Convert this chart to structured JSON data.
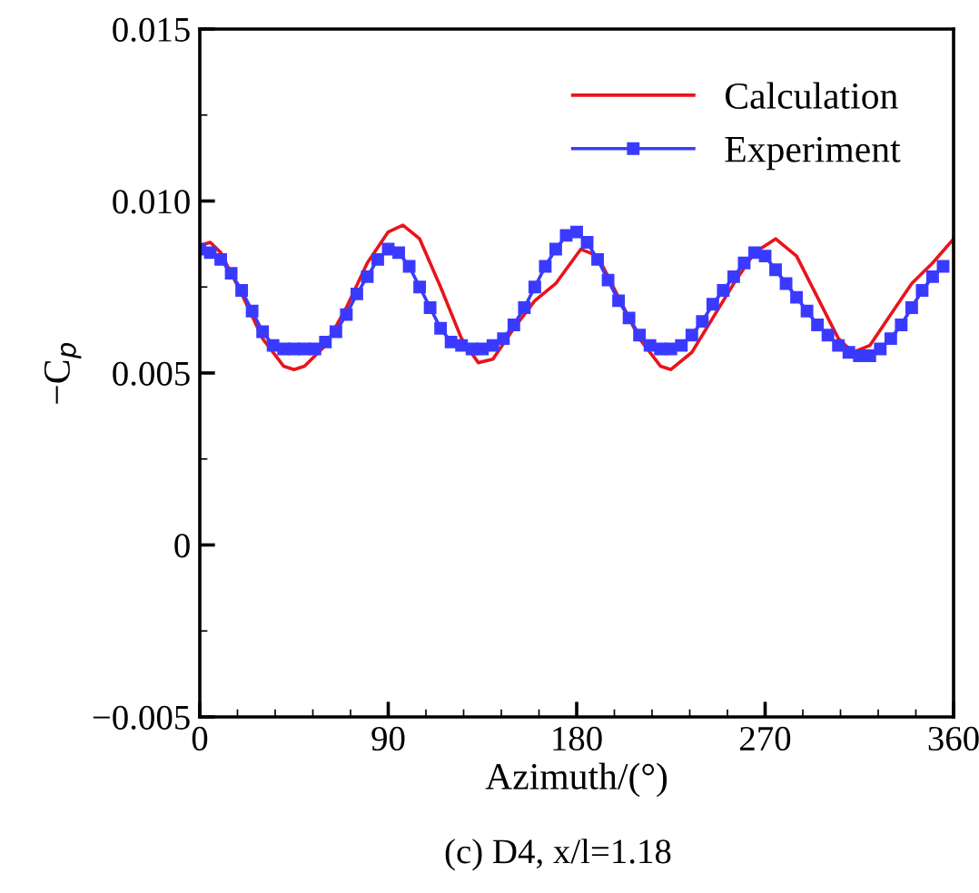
{
  "chart_data": {
    "type": "line",
    "xlabel": "Azimuth/(°)",
    "ylabel": "−C$_{p}$",
    "annotations": [
      "(c) D4, x/l=1.18"
    ],
    "xlim": [
      0,
      360
    ],
    "xticks": [
      0,
      {
        "value": 18,
        "label": null
      },
      {
        "value": 36,
        "label": null
      },
      {
        "value": 54,
        "label": null
      },
      {
        "value": 72,
        "label": null
      },
      90,
      {
        "value": 108,
        "label": null
      },
      {
        "value": 126,
        "label": null
      },
      {
        "value": 144,
        "label": null
      },
      {
        "value": 162,
        "label": null
      },
      180,
      {
        "value": 198,
        "label": null
      },
      {
        "value": 216,
        "label": null
      },
      {
        "value": 234,
        "label": null
      },
      {
        "value": 252,
        "label": null
      },
      270,
      {
        "value": 288,
        "label": null
      },
      {
        "value": 306,
        "label": null
      },
      {
        "value": 324,
        "label": null
      },
      {
        "value": 342,
        "label": null
      },
      360
    ],
    "ylim": [
      -0.005,
      0.015
    ],
    "yticks": [
      {
        "value": -0.005,
        "label": "−0.005"
      },
      {
        "value": -0.0025,
        "label": null
      },
      0,
      {
        "value": 0.0025,
        "label": null
      },
      0.005,
      {
        "value": 0.0075,
        "label": null
      },
      {
        "value": 0.01,
        "label": "0.010"
      },
      {
        "value": 0.0125,
        "label": null
      },
      0.015
    ],
    "grid": false,
    "legend": "top right",
    "series": [
      {
        "name": "Calculation",
        "color": "#e8141c",
        "marker": "none",
        "x": [
          0,
          5,
          10,
          20,
          30,
          40,
          45,
          50,
          60,
          70,
          80,
          90,
          97,
          105,
          115,
          125,
          133,
          140,
          150,
          160,
          170,
          182,
          190,
          200,
          210,
          220,
          225,
          235,
          245,
          255,
          265,
          275,
          285,
          295,
          305,
          312,
          320,
          330,
          340,
          350,
          360
        ],
        "values": [
          0.0087,
          0.0088,
          0.0085,
          0.0073,
          0.006,
          0.0052,
          0.0051,
          0.0052,
          0.0058,
          0.0069,
          0.0082,
          0.0091,
          0.0093,
          0.0089,
          0.0075,
          0.006,
          0.0053,
          0.0054,
          0.0063,
          0.0071,
          0.0076,
          0.0086,
          0.0084,
          0.0072,
          0.006,
          0.0052,
          0.0051,
          0.0056,
          0.0066,
          0.0076,
          0.0085,
          0.0089,
          0.0084,
          0.0072,
          0.006,
          0.0056,
          0.0058,
          0.0067,
          0.0076,
          0.0082,
          0.0089
        ]
      },
      {
        "name": "Experiment",
        "color": "#3a3aff",
        "marker": "square",
        "x": [
          0,
          5,
          10,
          15,
          20,
          25,
          30,
          35,
          40,
          45,
          50,
          55,
          60,
          65,
          70,
          75,
          80,
          85,
          90,
          95,
          100,
          105,
          110,
          115,
          120,
          125,
          130,
          135,
          140,
          145,
          150,
          155,
          160,
          165,
          170,
          175,
          180,
          185,
          190,
          195,
          200,
          205,
          210,
          215,
          220,
          225,
          230,
          235,
          240,
          245,
          250,
          255,
          260,
          265,
          270,
          275,
          280,
          285,
          290,
          295,
          300,
          305,
          310,
          315,
          320,
          325,
          330,
          335,
          340,
          345,
          350,
          355
        ],
        "values": [
          0.0086,
          0.0085,
          0.0083,
          0.0079,
          0.0074,
          0.0068,
          0.0062,
          0.0058,
          0.0057,
          0.0057,
          0.0057,
          0.0057,
          0.0059,
          0.0062,
          0.0067,
          0.0073,
          0.0078,
          0.0083,
          0.0086,
          0.0085,
          0.0081,
          0.0075,
          0.0069,
          0.0063,
          0.0059,
          0.0058,
          0.0057,
          0.0057,
          0.0058,
          0.006,
          0.0064,
          0.0069,
          0.0075,
          0.0081,
          0.0086,
          0.009,
          0.0091,
          0.0088,
          0.0083,
          0.0077,
          0.0071,
          0.0066,
          0.0061,
          0.0058,
          0.0057,
          0.0057,
          0.0058,
          0.0061,
          0.0065,
          0.007,
          0.0074,
          0.0078,
          0.0082,
          0.0085,
          0.0084,
          0.008,
          0.0076,
          0.0072,
          0.0068,
          0.0064,
          0.0061,
          0.0058,
          0.0056,
          0.0055,
          0.0055,
          0.0057,
          0.006,
          0.0064,
          0.0069,
          0.0074,
          0.0078,
          0.0081
        ]
      }
    ]
  }
}
